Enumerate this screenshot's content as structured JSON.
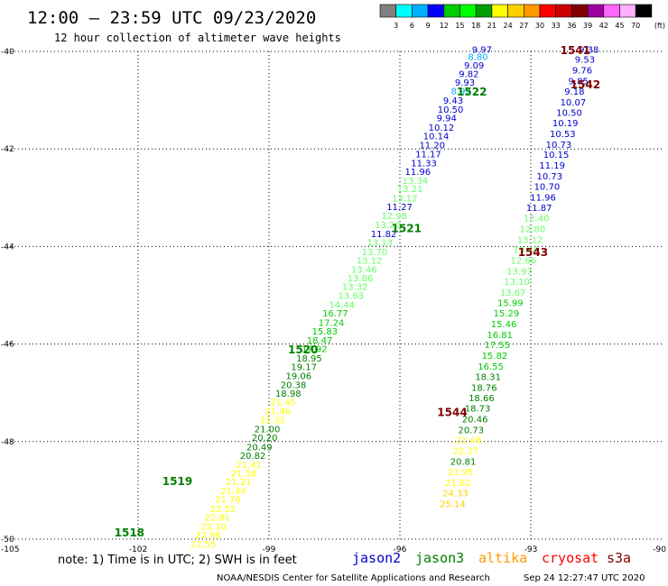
{
  "title": "12:00 – 23:59 UTC 09/23/2020",
  "subtitle": "12 hour collection of altimeter wave heights",
  "colorbar": {
    "labels": [
      "3",
      "6",
      "9",
      "12",
      "15",
      "18",
      "21",
      "24",
      "27",
      "30",
      "33",
      "36",
      "39",
      "42",
      "45",
      "70"
    ],
    "unit": "(ft)",
    "colors": [
      "#808080",
      "#00ffff",
      "#00b0ff",
      "#0000ff",
      "#00cc00",
      "#00ff00",
      "#00a000",
      "#ffff00",
      "#ffd000",
      "#ff9900",
      "#ff0000",
      "#cc0000",
      "#800000",
      "#a000a0",
      "#ff66ff",
      "#ffb0ff",
      "#000000"
    ]
  },
  "note": "note: 1) Time is in UTC; 2) SWH is in feet",
  "legend": [
    {
      "name": "jason2",
      "color": "#0000cc"
    },
    {
      "name": "jason3",
      "color": "#008000"
    },
    {
      "name": "altika",
      "color": "#ff9900"
    },
    {
      "name": "cryosat",
      "color": "#ff0000"
    },
    {
      "name": "s3a",
      "color": "#800000"
    }
  ],
  "credit": "NOAA/NESDIS Center for Satellite Applications and Research",
  "timestamp": "Sep 24 12:27:47 UTC 2020",
  "chart_data": {
    "type": "scatter",
    "xlim": [
      -105,
      -90
    ],
    "ylim": [
      -50,
      -40
    ],
    "x_ticks": [
      -105,
      -102,
      -99,
      -96,
      -93,
      -90
    ],
    "y_ticks": [
      -40,
      -42,
      -44,
      -46,
      -48,
      -50
    ],
    "grid": true,
    "pass_labels": [
      {
        "text": "1541",
        "lon": -91.98,
        "lat": -39.98,
        "color": "#800000"
      },
      {
        "text": "1542",
        "lon": -91.75,
        "lat": -40.68,
        "color": "#800000"
      },
      {
        "text": "1522",
        "lon": -94.35,
        "lat": -40.83,
        "color": "#008000"
      },
      {
        "text": "1521",
        "lon": -95.85,
        "lat": -43.63,
        "color": "#008000"
      },
      {
        "text": "1543",
        "lon": -92.95,
        "lat": -44.12,
        "color": "#800000"
      },
      {
        "text": "1520",
        "lon": -98.22,
        "lat": -46.12,
        "color": "#008000"
      },
      {
        "text": "1544",
        "lon": -94.8,
        "lat": -47.4,
        "color": "#800000"
      },
      {
        "text": "1519",
        "lon": -101.1,
        "lat": -48.82,
        "color": "#008000"
      },
      {
        "text": "1518",
        "lon": -102.2,
        "lat": -49.87,
        "color": "#008000"
      }
    ],
    "series": [
      {
        "points": [
          {
            "lon": -94.12,
            "lat": -39.97,
            "swh": "9.97",
            "color": "#0000cc"
          },
          {
            "lon": -94.21,
            "lat": -40.12,
            "swh": "8.80",
            "color": "#00b0ff"
          },
          {
            "lon": -94.3,
            "lat": -40.3,
            "swh": "9.09",
            "color": "#0000cc"
          },
          {
            "lon": -94.42,
            "lat": -40.47,
            "swh": "9.82",
            "color": "#0000cc"
          },
          {
            "lon": -94.51,
            "lat": -40.65,
            "swh": "9.93",
            "color": "#0000cc"
          },
          {
            "lon": -94.6,
            "lat": -40.82,
            "swh": "8.92",
            "color": "#00b0ff"
          },
          {
            "lon": -94.78,
            "lat": -41.02,
            "swh": "9.43",
            "color": "#0000cc"
          },
          {
            "lon": -94.84,
            "lat": -41.2,
            "swh": "10.50",
            "color": "#0000cc"
          },
          {
            "lon": -94.93,
            "lat": -41.38,
            "swh": "9.94",
            "color": "#0000cc"
          },
          {
            "lon": -95.05,
            "lat": -41.57,
            "swh": "10.12",
            "color": "#0000cc"
          },
          {
            "lon": -95.17,
            "lat": -41.75,
            "swh": "10.14",
            "color": "#0000cc"
          },
          {
            "lon": -95.26,
            "lat": -41.93,
            "swh": "11.20",
            "color": "#0000cc"
          },
          {
            "lon": -95.35,
            "lat": -42.12,
            "swh": "11.17",
            "color": "#0000cc"
          },
          {
            "lon": -95.45,
            "lat": -42.3,
            "swh": "11.33",
            "color": "#0000cc"
          },
          {
            "lon": -95.59,
            "lat": -42.48,
            "swh": "11.96",
            "color": "#0000cc"
          },
          {
            "lon": -95.65,
            "lat": -42.66,
            "swh": "13.34",
            "color": "#66ff66"
          },
          {
            "lon": -95.77,
            "lat": -42.83,
            "swh": "13.21",
            "color": "#66ff66"
          },
          {
            "lon": -95.89,
            "lat": -43.02,
            "swh": "13.12",
            "color": "#66ff66"
          },
          {
            "lon": -96.01,
            "lat": -43.2,
            "swh": "11.27",
            "color": "#0000cc"
          },
          {
            "lon": -96.13,
            "lat": -43.38,
            "swh": "12.98",
            "color": "#66ff66"
          },
          {
            "lon": -96.28,
            "lat": -43.57,
            "swh": "13.20",
            "color": "#66ff66"
          },
          {
            "lon": -96.37,
            "lat": -43.75,
            "swh": "11.82",
            "color": "#0000cc"
          },
          {
            "lon": -96.46,
            "lat": -43.93,
            "swh": "13.13",
            "color": "#66ff66"
          },
          {
            "lon": -96.58,
            "lat": -44.12,
            "swh": "13.70",
            "color": "#66ff66"
          },
          {
            "lon": -96.7,
            "lat": -44.3,
            "swh": "13.12",
            "color": "#66ff66"
          },
          {
            "lon": -96.82,
            "lat": -44.48,
            "swh": "13.46",
            "color": "#66ff66"
          },
          {
            "lon": -96.91,
            "lat": -44.66,
            "swh": "13.86",
            "color": "#66ff66"
          },
          {
            "lon": -97.03,
            "lat": -44.83,
            "swh": "13.32",
            "color": "#66ff66"
          },
          {
            "lon": -97.12,
            "lat": -45.02,
            "swh": "13.63",
            "color": "#66ff66"
          },
          {
            "lon": -97.33,
            "lat": -45.2,
            "swh": "14.44",
            "color": "#66ff66"
          },
          {
            "lon": -97.48,
            "lat": -45.38,
            "swh": "16.77",
            "color": "#00cc00"
          },
          {
            "lon": -97.57,
            "lat": -45.57,
            "swh": "17.24",
            "color": "#00cc00"
          },
          {
            "lon": -97.72,
            "lat": -45.75,
            "swh": "15.83",
            "color": "#00cc00"
          },
          {
            "lon": -97.84,
            "lat": -45.93,
            "swh": "18.47",
            "color": "#00cc00"
          },
          {
            "lon": -97.96,
            "lat": -46.11,
            "swh": "17.92",
            "color": "#00cc00"
          },
          {
            "lon": -98.08,
            "lat": -46.3,
            "swh": "18.95",
            "color": "#008000"
          },
          {
            "lon": -98.2,
            "lat": -46.48,
            "swh": "19.17",
            "color": "#008000"
          },
          {
            "lon": -98.32,
            "lat": -46.66,
            "swh": "19.06",
            "color": "#008000"
          },
          {
            "lon": -98.44,
            "lat": -46.85,
            "swh": "20.38",
            "color": "#008000"
          },
          {
            "lon": -98.56,
            "lat": -47.02,
            "swh": "18.98",
            "color": "#008000"
          },
          {
            "lon": -98.68,
            "lat": -47.2,
            "swh": "21.45",
            "color": "#ffff00"
          },
          {
            "lon": -98.8,
            "lat": -47.38,
            "swh": "21.46",
            "color": "#ffff00"
          },
          {
            "lon": -98.92,
            "lat": -47.57,
            "swh": "21.32",
            "color": "#ffff00"
          },
          {
            "lon": -99.04,
            "lat": -47.75,
            "swh": "21.00",
            "color": "#008000"
          },
          {
            "lon": -99.1,
            "lat": -47.93,
            "swh": "20.20",
            "color": "#008000"
          },
          {
            "lon": -99.22,
            "lat": -48.12,
            "swh": "20.49",
            "color": "#008000"
          },
          {
            "lon": -99.37,
            "lat": -48.3,
            "swh": "20.82",
            "color": "#008000"
          },
          {
            "lon": -99.46,
            "lat": -48.48,
            "swh": "21.41",
            "color": "#ffff00"
          },
          {
            "lon": -99.58,
            "lat": -48.66,
            "swh": "21.58",
            "color": "#ffff00"
          },
          {
            "lon": -99.7,
            "lat": -48.84,
            "swh": "21.21",
            "color": "#ffff00"
          },
          {
            "lon": -99.82,
            "lat": -49.02,
            "swh": "21.44",
            "color": "#ffff00"
          },
          {
            "lon": -99.94,
            "lat": -49.2,
            "swh": "21.76",
            "color": "#ffff00"
          },
          {
            "lon": -100.06,
            "lat": -49.39,
            "swh": "22.52",
            "color": "#ffff00"
          },
          {
            "lon": -100.18,
            "lat": -49.57,
            "swh": "22.81",
            "color": "#ffff00"
          },
          {
            "lon": -100.27,
            "lat": -49.75,
            "swh": "22.10",
            "color": "#ffff00"
          },
          {
            "lon": -100.39,
            "lat": -49.93,
            "swh": "22.96",
            "color": "#ffff00"
          },
          {
            "lon": -100.51,
            "lat": -50.11,
            "swh": "22.55",
            "color": "#ffff00"
          }
        ]
      },
      {
        "points": [
          {
            "lon": -91.67,
            "lat": -39.97,
            "swh": "9.38",
            "color": "#0000cc"
          },
          {
            "lon": -91.76,
            "lat": -40.18,
            "swh": "9.53",
            "color": "#0000cc"
          },
          {
            "lon": -91.82,
            "lat": -40.4,
            "swh": "9.76",
            "color": "#0000cc"
          },
          {
            "lon": -91.91,
            "lat": -40.62,
            "swh": "9.85",
            "color": "#0000cc"
          },
          {
            "lon": -92.0,
            "lat": -40.83,
            "swh": "9.18",
            "color": "#0000cc"
          },
          {
            "lon": -92.03,
            "lat": -41.05,
            "swh": "10.07",
            "color": "#0000cc"
          },
          {
            "lon": -92.12,
            "lat": -41.27,
            "swh": "10.50",
            "color": "#0000cc"
          },
          {
            "lon": -92.21,
            "lat": -41.48,
            "swh": "10.19",
            "color": "#0000cc"
          },
          {
            "lon": -92.27,
            "lat": -41.7,
            "swh": "10.53",
            "color": "#0000cc"
          },
          {
            "lon": -92.36,
            "lat": -41.92,
            "swh": "10.73",
            "color": "#0000cc"
          },
          {
            "lon": -92.42,
            "lat": -42.13,
            "swh": "10.15",
            "color": "#0000cc"
          },
          {
            "lon": -92.51,
            "lat": -42.35,
            "swh": "11.19",
            "color": "#0000cc"
          },
          {
            "lon": -92.57,
            "lat": -42.57,
            "swh": "10.73",
            "color": "#0000cc"
          },
          {
            "lon": -92.63,
            "lat": -42.78,
            "swh": "10.70",
            "color": "#0000cc"
          },
          {
            "lon": -92.72,
            "lat": -43.0,
            "swh": "11.96",
            "color": "#0000cc"
          },
          {
            "lon": -92.81,
            "lat": -43.22,
            "swh": "11.87",
            "color": "#0000cc"
          },
          {
            "lon": -92.87,
            "lat": -43.43,
            "swh": "12.40",
            "color": "#66ff66"
          },
          {
            "lon": -92.96,
            "lat": -43.65,
            "swh": "12.80",
            "color": "#66ff66"
          },
          {
            "lon": -93.02,
            "lat": -43.87,
            "swh": "13.12",
            "color": "#66ff66"
          },
          {
            "lon": -93.11,
            "lat": -44.08,
            "swh": "13.44",
            "color": "#66ff66"
          },
          {
            "lon": -93.17,
            "lat": -44.3,
            "swh": "12.66",
            "color": "#66ff66"
          },
          {
            "lon": -93.26,
            "lat": -44.52,
            "swh": "13.97",
            "color": "#66ff66"
          },
          {
            "lon": -93.32,
            "lat": -44.73,
            "swh": "13.10",
            "color": "#66ff66"
          },
          {
            "lon": -93.41,
            "lat": -44.95,
            "swh": "13.67",
            "color": "#66ff66"
          },
          {
            "lon": -93.47,
            "lat": -45.17,
            "swh": "15.99",
            "color": "#00cc00"
          },
          {
            "lon": -93.56,
            "lat": -45.38,
            "swh": "15.29",
            "color": "#00cc00"
          },
          {
            "lon": -93.62,
            "lat": -45.6,
            "swh": "15.46",
            "color": "#00cc00"
          },
          {
            "lon": -93.71,
            "lat": -45.82,
            "swh": "16.81",
            "color": "#00cc00"
          },
          {
            "lon": -93.77,
            "lat": -46.03,
            "swh": "17.55",
            "color": "#00cc00"
          },
          {
            "lon": -93.83,
            "lat": -46.25,
            "swh": "15.82",
            "color": "#00cc00"
          },
          {
            "lon": -93.92,
            "lat": -46.47,
            "swh": "16.55",
            "color": "#00cc00"
          },
          {
            "lon": -93.98,
            "lat": -46.68,
            "swh": "18.31",
            "color": "#008000"
          },
          {
            "lon": -94.07,
            "lat": -46.9,
            "swh": "18.76",
            "color": "#008000"
          },
          {
            "lon": -94.13,
            "lat": -47.12,
            "swh": "18.66",
            "color": "#008000"
          },
          {
            "lon": -94.22,
            "lat": -47.33,
            "swh": "18.73",
            "color": "#008000"
          },
          {
            "lon": -94.28,
            "lat": -47.55,
            "swh": "20.46",
            "color": "#008000"
          },
          {
            "lon": -94.37,
            "lat": -47.77,
            "swh": "20.73",
            "color": "#008000"
          },
          {
            "lon": -94.43,
            "lat": -47.98,
            "swh": "21.48",
            "color": "#ffff00"
          },
          {
            "lon": -94.49,
            "lat": -48.2,
            "swh": "22.27",
            "color": "#ffff00"
          },
          {
            "lon": -94.55,
            "lat": -48.42,
            "swh": "20.81",
            "color": "#008000"
          },
          {
            "lon": -94.61,
            "lat": -48.63,
            "swh": "21.95",
            "color": "#ffff00"
          },
          {
            "lon": -94.67,
            "lat": -48.85,
            "swh": "21.62",
            "color": "#ffff00"
          },
          {
            "lon": -94.73,
            "lat": -49.07,
            "swh": "24.33",
            "color": "#ffd000"
          },
          {
            "lon": -94.79,
            "lat": -49.29,
            "swh": "25.14",
            "color": "#ffd000"
          }
        ]
      }
    ]
  }
}
